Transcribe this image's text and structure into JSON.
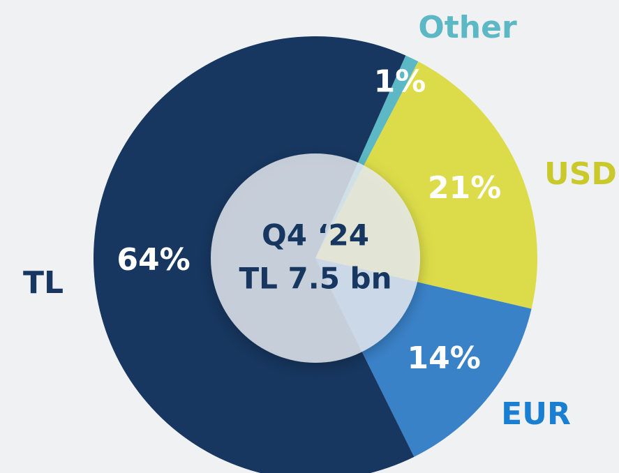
{
  "chart_data": {
    "type": "pie",
    "categories": [
      "Other",
      "USD",
      "EUR",
      "TL"
    ],
    "values": [
      1,
      21,
      14,
      64
    ],
    "value_labels": [
      "1%",
      "21%",
      "14%",
      "64%"
    ],
    "colors": [
      "#5bb8c4",
      "#dcdc4a",
      "#3a82c8",
      "#173760"
    ],
    "label_colors": [
      "#5bb8c4",
      "#c9c92c",
      "#1a7fd0",
      "#173760"
    ],
    "center_label": [
      "Q4 ‘24",
      "TL 7.5 bn"
    ]
  }
}
